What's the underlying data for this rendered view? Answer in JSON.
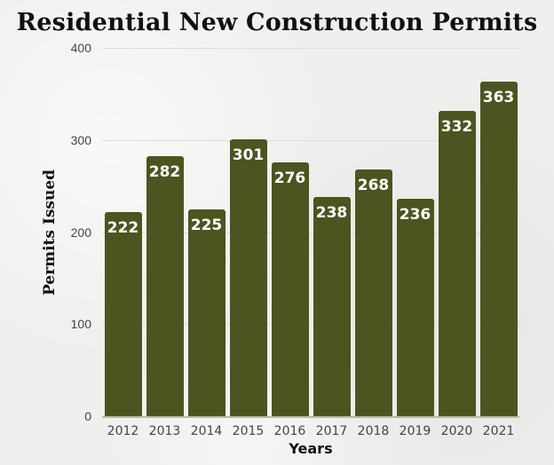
{
  "chart_data": {
    "type": "bar",
    "title": "Residential New Construction Permits",
    "xlabel": "Years",
    "ylabel": "Permits Issued",
    "categories": [
      "2012",
      "2013",
      "2014",
      "2015",
      "2016",
      "2017",
      "2018",
      "2019",
      "2020",
      "2021"
    ],
    "values": [
      222,
      282,
      225,
      301,
      276,
      238,
      268,
      236,
      332,
      363
    ],
    "ylim": [
      0,
      400
    ],
    "yticks": [
      "0",
      "100",
      "200",
      "300",
      "400"
    ],
    "grid": true,
    "legend": null,
    "data_labels": true,
    "bar_color": "#4b5520",
    "label_color": "#ffffff"
  }
}
